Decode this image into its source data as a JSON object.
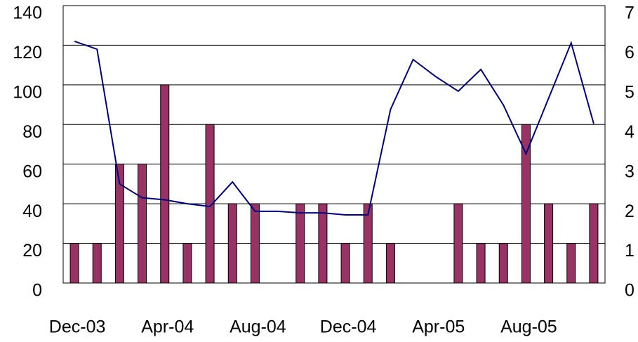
{
  "chart_data": {
    "type": "bar-line",
    "categories": [
      "Dec-03",
      null,
      null,
      null,
      "Apr-04",
      null,
      null,
      null,
      "Aug-04",
      null,
      null,
      null,
      "Dec-04",
      null,
      null,
      null,
      "Apr-05",
      null,
      null,
      null,
      "Aug-05",
      null,
      null,
      null
    ],
    "series": [
      {
        "type": "bar",
        "color": "#993366",
        "values": [
          20,
          20,
          60,
          60,
          100,
          20,
          80,
          40,
          40,
          0,
          40,
          40,
          20,
          40,
          20,
          0,
          0,
          40,
          20,
          20,
          80,
          40,
          20,
          40
        ]
      },
      {
        "type": "line",
        "axis": "y2",
        "color": "#000080",
        "values": [
          6.1,
          5.9,
          2.5,
          2.15,
          2.1,
          2.0,
          1.93,
          2.55,
          1.81,
          1.81,
          1.77,
          1.77,
          1.72,
          1.72,
          4.38,
          5.64,
          5.21,
          4.84,
          5.39,
          4.49,
          3.26,
          4.66,
          6.06,
          4.02
        ]
      }
    ],
    "ylim": [
      0,
      140
    ],
    "yticks": [
      0,
      20,
      40,
      60,
      80,
      100,
      120,
      140
    ],
    "y2lim": [
      0,
      7
    ],
    "y2ticks": [
      0,
      1,
      2,
      3,
      4,
      5,
      6,
      7
    ],
    "grid": true
  }
}
